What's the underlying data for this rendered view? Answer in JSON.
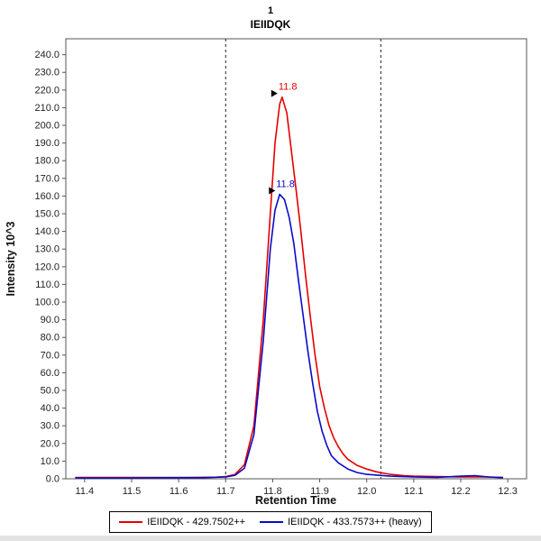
{
  "title": {
    "line1": "1",
    "line2": "IEIIDQK"
  },
  "axes": {
    "x_label": "Retention Time",
    "y_label": "Intensity 10^3"
  },
  "legend": [
    {
      "label": "IEIIDQK - 429.7502++",
      "color": "#e60000"
    },
    {
      "label": "IEIIDQK - 433.7573++ (heavy)",
      "color": "#0a0ac8"
    }
  ],
  "chart_data": {
    "type": "line",
    "title": "1 IEIIDQK",
    "xlabel": "Retention Time",
    "ylabel": "Intensity 10^3",
    "xlim": [
      11.36,
      12.34
    ],
    "ylim": [
      0,
      249
    ],
    "xticks": [
      11.4,
      11.5,
      11.6,
      11.7,
      11.8,
      11.9,
      12.0,
      12.1,
      12.2,
      12.3
    ],
    "yticks": [
      0,
      10,
      20,
      30,
      40,
      50,
      60,
      70,
      80,
      90,
      100,
      110,
      120,
      130,
      140,
      150,
      160,
      170,
      180,
      190,
      200,
      210,
      220,
      230,
      240
    ],
    "grid": false,
    "legend_position": "bottom",
    "integration_boundaries": [
      11.7,
      12.03
    ],
    "annotations": [
      {
        "text": "11.8",
        "x": 11.82,
        "y": 216,
        "color": "#e60000"
      },
      {
        "text": "11.8",
        "x": 11.815,
        "y": 161,
        "color": "#0a0ac8"
      }
    ],
    "series": [
      {
        "name": "IEIIDQK - 429.7502++",
        "color": "#e60000",
        "points": [
          [
            11.38,
            0.7
          ],
          [
            11.45,
            0.7
          ],
          [
            11.5,
            0.7
          ],
          [
            11.55,
            0.7
          ],
          [
            11.6,
            0.7
          ],
          [
            11.64,
            0.8
          ],
          [
            11.68,
            0.9
          ],
          [
            11.7,
            1.2
          ],
          [
            11.72,
            2.5
          ],
          [
            11.74,
            8
          ],
          [
            11.76,
            30
          ],
          [
            11.78,
            90
          ],
          [
            11.795,
            150
          ],
          [
            11.805,
            190
          ],
          [
            11.815,
            212
          ],
          [
            11.82,
            216
          ],
          [
            11.83,
            207
          ],
          [
            11.84,
            185
          ],
          [
            11.85,
            163
          ],
          [
            11.86,
            140
          ],
          [
            11.87,
            115
          ],
          [
            11.88,
            92
          ],
          [
            11.89,
            70
          ],
          [
            11.9,
            52
          ],
          [
            11.91,
            40
          ],
          [
            11.92,
            30
          ],
          [
            11.93,
            23
          ],
          [
            11.94,
            18
          ],
          [
            11.95,
            14
          ],
          [
            11.96,
            11
          ],
          [
            11.98,
            7.5
          ],
          [
            12.0,
            5.5
          ],
          [
            12.02,
            4
          ],
          [
            12.05,
            2.5
          ],
          [
            12.08,
            1.8
          ],
          [
            12.1,
            1.5
          ],
          [
            12.15,
            1.2
          ],
          [
            12.2,
            1.0
          ],
          [
            12.25,
            1.0
          ],
          [
            12.29,
            0.8
          ]
        ]
      },
      {
        "name": "IEIIDQK - 433.7573++ (heavy)",
        "color": "#0a0ac8",
        "points": [
          [
            11.38,
            0.5
          ],
          [
            11.5,
            0.5
          ],
          [
            11.6,
            0.6
          ],
          [
            11.65,
            0.6
          ],
          [
            11.7,
            1.0
          ],
          [
            11.72,
            2
          ],
          [
            11.74,
            6
          ],
          [
            11.76,
            25
          ],
          [
            11.78,
            78
          ],
          [
            11.795,
            130
          ],
          [
            11.805,
            152
          ],
          [
            11.815,
            161
          ],
          [
            11.825,
            158
          ],
          [
            11.835,
            148
          ],
          [
            11.845,
            133
          ],
          [
            11.855,
            112
          ],
          [
            11.865,
            92
          ],
          [
            11.875,
            72
          ],
          [
            11.885,
            54
          ],
          [
            11.895,
            38
          ],
          [
            11.905,
            27
          ],
          [
            11.915,
            19
          ],
          [
            11.925,
            13
          ],
          [
            11.94,
            9
          ],
          [
            11.96,
            5.5
          ],
          [
            11.98,
            3.5
          ],
          [
            12.0,
            2.5
          ],
          [
            12.05,
            1.5
          ],
          [
            12.1,
            1.0
          ],
          [
            12.15,
            0.8
          ],
          [
            12.2,
            1.5
          ],
          [
            12.23,
            1.8
          ],
          [
            12.26,
            1.0
          ],
          [
            12.29,
            0.6
          ]
        ]
      }
    ]
  }
}
